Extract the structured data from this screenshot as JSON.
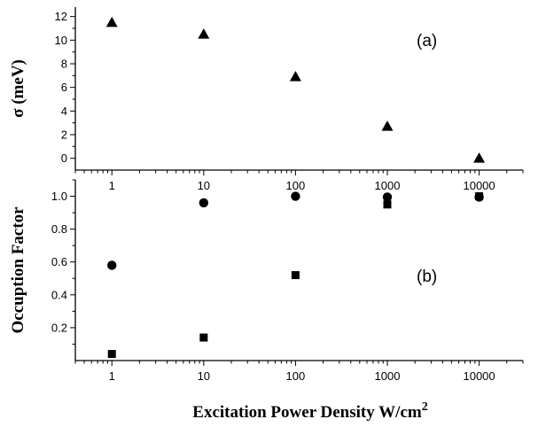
{
  "figure": {
    "xlabel": "Excitation Power Density W/cm",
    "xlabel_superscript": "2"
  },
  "chart_data": [
    {
      "type": "scatter",
      "panel_label": "(a)",
      "ylabel": "σ (meV)",
      "xscale": "log",
      "xlim": [
        0.4,
        30000
      ],
      "ylim": [
        -1,
        12.8
      ],
      "x_ticks": [
        "1",
        "10",
        "100",
        "1000",
        "10000"
      ],
      "y_ticks": [
        "0",
        "2",
        "4",
        "6",
        "8",
        "10",
        "12"
      ],
      "series": [
        {
          "marker": "triangle",
          "x": [
            1,
            10,
            100,
            1000,
            10000
          ],
          "y": [
            11.5,
            10.5,
            6.9,
            2.7,
            0.0
          ]
        }
      ]
    },
    {
      "type": "scatter",
      "panel_label": "(b)",
      "ylabel": "Occuption Factor",
      "xscale": "log",
      "xlim": [
        0.4,
        30000
      ],
      "ylim": [
        0,
        1.1
      ],
      "x_ticks": [
        "1",
        "10",
        "100",
        "1000",
        "10000"
      ],
      "y_ticks": [
        "0.2",
        "0.4",
        "0.6",
        "0.8",
        "1.0"
      ],
      "series": [
        {
          "marker": "circle",
          "x": [
            1,
            10,
            100,
            1000,
            10000
          ],
          "y": [
            0.58,
            0.96,
            1.0,
            0.995,
            0.995
          ]
        },
        {
          "marker": "square",
          "x": [
            1,
            10,
            100,
            1000,
            10000
          ],
          "y": [
            0.04,
            0.14,
            0.52,
            0.95,
            1.0
          ]
        }
      ]
    }
  ]
}
